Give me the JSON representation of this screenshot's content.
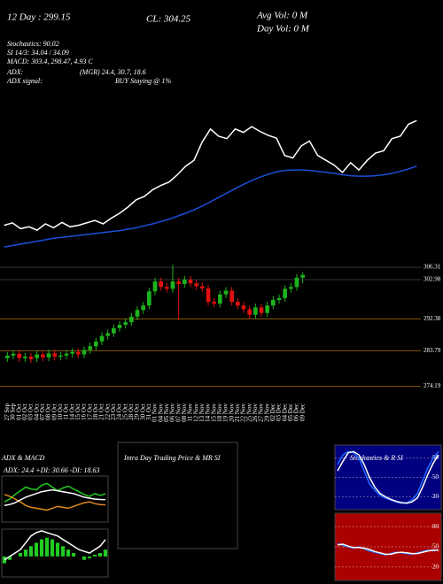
{
  "header": {
    "day12": "12 Day : 299.15",
    "close": "CL: 304.25",
    "avg_vol": "Avg Vol: 0  M",
    "day_vol": "Day Vol: 0  M",
    "stochastics": "Stochastics: 90.02",
    "rsi": "SI 14/3: 34.04 / 34.09",
    "macd": "MACD: 303.4, 298.47, 4.93 C",
    "adx": "ADX:",
    "adx_values": "(MGR) 24.4, 30.7, 18.6",
    "adx_signal": "ADX  signal:",
    "signal": "BUY Staying @ 1%"
  },
  "chart_data": [
    {
      "type": "line",
      "ylim": [
        276,
        310
      ],
      "series": [
        {
          "color": "#ffffff",
          "values": [
            282.5,
            283,
            281.8,
            282.2,
            281.5,
            282.8,
            282,
            283.1,
            282.2,
            282.5,
            283,
            283.5,
            282.8,
            284,
            285,
            286.3,
            287.8,
            288.5,
            289.9,
            290.8,
            291.5,
            293,
            294.8,
            296,
            299.8,
            302.5,
            301,
            300.5,
            302.5,
            301.8,
            303,
            302,
            301.2,
            300.6,
            297,
            296.5,
            299,
            300,
            297,
            296,
            295,
            293.5,
            295.5,
            294,
            296,
            297.5,
            298,
            300.5,
            301,
            303.5,
            304.25
          ]
        },
        {
          "color": "#1a4fd8",
          "values": [
            278,
            278.3,
            278.6,
            278.9,
            279.2,
            279.5,
            279.8,
            280,
            280.2,
            280.4,
            280.6,
            280.8,
            281,
            281.2,
            281.4,
            281.7,
            282,
            282.4,
            282.8,
            283.3,
            283.8,
            284.4,
            285,
            285.7,
            286.5,
            287.4,
            288.3,
            289.2,
            290.1,
            291,
            291.8,
            292.5,
            293.1,
            293.6,
            293.9,
            294,
            294,
            293.9,
            293.7,
            293.5,
            293.3,
            293,
            292.8,
            292.7,
            292.7,
            292.8,
            293,
            293.3,
            293.7,
            294.2,
            294.8
          ]
        }
      ]
    },
    {
      "type": "candlestick",
      "up_color": "#1db31d",
      "down_color": "#e01010",
      "grid_color": "#8b5a00",
      "ylim": [
        271,
        308
      ],
      "yticks": [
        306.31,
        302.98,
        292.38,
        283.79,
        274.19
      ],
      "categories": [
        "27 Sep",
        "30 Sep",
        "01 Oct",
        "02 Oct",
        "03 Oct",
        "04 Oct",
        "07 Oct",
        "08 Oct",
        "09 Oct",
        "10 Oct",
        "11 Oct",
        "14 Oct",
        "15 Oct",
        "16 Oct",
        "17 Oct",
        "18 Oct",
        "21 Oct",
        "22 Oct",
        "23 Oct",
        "24 Oct",
        "25 Oct",
        "28 Oct",
        "29 Oct",
        "30 Oct",
        "31 Oct",
        "01 Nov",
        "04 Nov",
        "05 Nov",
        "06 Nov",
        "07 Nov",
        "08 Nov",
        "11 Nov",
        "12 Nov",
        "13 Nov",
        "14 Nov",
        "15 Nov",
        "18 Nov",
        "19 Nov",
        "20 Nov",
        "21 Nov",
        "22 Nov",
        "25 Nov",
        "26 Nov",
        "27 Nov",
        "29 Nov",
        "02 Dec",
        "03 Dec",
        "04 Dec",
        "05 Dec",
        "06 Dec",
        "09 Dec"
      ],
      "open": [
        281.8,
        282.5,
        283,
        281.8,
        282.2,
        281.8,
        282.8,
        282,
        283.1,
        282.2,
        282.5,
        283,
        283.5,
        282.8,
        284,
        285,
        286.3,
        287.8,
        288.5,
        289.9,
        290.8,
        291.5,
        293,
        294.8,
        296,
        299.8,
        302.5,
        301,
        300.5,
        302.5,
        301.8,
        303,
        302,
        301.2,
        300.6,
        297,
        296.5,
        299,
        300,
        297,
        296,
        295,
        293.5,
        295.5,
        294,
        296,
        297.5,
        298,
        300.5,
        301,
        303.5
      ],
      "high": [
        283.5,
        284,
        284,
        283.2,
        283.2,
        283.8,
        283.8,
        284.1,
        284.1,
        283.5,
        284,
        284.5,
        284.5,
        285,
        286,
        287.3,
        288.8,
        289.5,
        290.9,
        291.8,
        292.5,
        294,
        295.8,
        297,
        300.8,
        303.5,
        303.5,
        302,
        307,
        303.5,
        304,
        304,
        303,
        302.2,
        301.6,
        298,
        300,
        301,
        301,
        298,
        297,
        296,
        296.5,
        296.5,
        297,
        298.5,
        299,
        301.5,
        302,
        304.5,
        305
      ],
      "low": [
        280.8,
        281.5,
        280.8,
        280.8,
        280.5,
        280.8,
        281,
        281,
        281.2,
        281.2,
        281.5,
        282,
        281.8,
        281.8,
        283,
        284,
        285.3,
        286.8,
        287.5,
        288.9,
        289.8,
        290.5,
        292,
        293.8,
        295,
        298.8,
        300,
        299.5,
        299.5,
        292,
        300.8,
        301,
        300.2,
        299.6,
        296,
        295.5,
        295.5,
        298,
        296,
        295,
        294,
        292.5,
        292.5,
        293,
        293,
        295,
        296.5,
        297,
        299.5,
        300,
        302
      ],
      "close": [
        282.5,
        283,
        281.8,
        282.2,
        281.5,
        282.8,
        282,
        283.1,
        282.2,
        282.5,
        283,
        283.5,
        282.8,
        284,
        285,
        286.3,
        287.8,
        288.5,
        289.9,
        290.8,
        291.5,
        293,
        294.8,
        296,
        299.8,
        302.5,
        301,
        300.5,
        302.5,
        301.8,
        303,
        302,
        301.2,
        300.6,
        297,
        296.5,
        299,
        300,
        297,
        296,
        295,
        293.5,
        295.5,
        294,
        296,
        297.5,
        298,
        300.5,
        301,
        303.5,
        304.25
      ]
    },
    {
      "type": "line",
      "title": "ADX  & MACD",
      "subtitle": "ADX: 24.4  +DI: 30.66  -DI: 18.63",
      "ylim": [
        0,
        50
      ],
      "series": [
        {
          "color": "#22cc22",
          "values": [
            22,
            25,
            30,
            34,
            38,
            36,
            35,
            40,
            42,
            38,
            34,
            37,
            39,
            36,
            33,
            30,
            28,
            31,
            29,
            30.66
          ]
        },
        {
          "color": "#e08a1a",
          "values": [
            30,
            28,
            25,
            22,
            18,
            16,
            15,
            14,
            13,
            15,
            17,
            16,
            15,
            17,
            19,
            21,
            22,
            20,
            19,
            18.63
          ]
        },
        {
          "color": "#ffffff",
          "values": [
            18,
            19,
            21,
            24,
            27,
            29,
            31,
            33,
            34,
            35,
            34,
            33,
            32,
            31,
            29,
            27,
            26,
            25,
            24.5,
            24.4
          ]
        }
      ]
    },
    {
      "type": "bar",
      "color": "#22cc22",
      "ylim": [
        -6,
        8
      ],
      "values": [
        -2,
        -1,
        0,
        1,
        2,
        3,
        4,
        5,
        5.5,
        5,
        4,
        3,
        2,
        1,
        0,
        -1,
        -0.5,
        0.5,
        1,
        2
      ],
      "series": [
        {
          "color": "#ffffff",
          "values": [
            -1,
            0,
            1,
            2,
            4,
            6,
            7,
            7.5,
            7,
            6.5,
            6,
            5,
            4,
            3,
            2,
            1.5,
            1,
            2,
            3,
            4.93
          ]
        }
      ]
    },
    {
      "type": "line",
      "title": "Intra Day Trading Price  & MR SI",
      "series": []
    },
    {
      "type": "line",
      "title": "Stochastics  & R SI",
      "background": "#000080",
      "ylim": [
        0,
        100
      ],
      "yticks": [
        20,
        50,
        80
      ],
      "series": [
        {
          "color": "#1e6bff",
          "values": [
            70,
            85,
            90,
            88,
            80,
            60,
            40,
            30,
            22,
            18,
            15,
            12,
            10,
            11,
            15,
            25,
            45,
            65,
            80,
            90.02
          ]
        },
        {
          "color": "#ffffff",
          "values": [
            60,
            75,
            88,
            90,
            85,
            70,
            50,
            35,
            25,
            20,
            16,
            13,
            11,
            10,
            12,
            18,
            35,
            55,
            72,
            85
          ]
        }
      ]
    },
    {
      "type": "line",
      "background": "#aa0000",
      "ylim": [
        0,
        100
      ],
      "yticks": [
        20,
        50,
        80
      ],
      "series": [
        {
          "color": "#1e6bff",
          "values": [
            55,
            52,
            50,
            48,
            50,
            47,
            44,
            42,
            40,
            38,
            40,
            42,
            41,
            40,
            39,
            41,
            43,
            45,
            44,
            46
          ]
        },
        {
          "color": "#ffffff",
          "values": [
            53,
            54,
            51,
            49,
            49,
            48,
            46,
            43,
            41,
            39,
            39,
            41,
            42,
            41,
            40,
            40,
            42,
            44,
            45,
            45
          ]
        }
      ]
    }
  ]
}
